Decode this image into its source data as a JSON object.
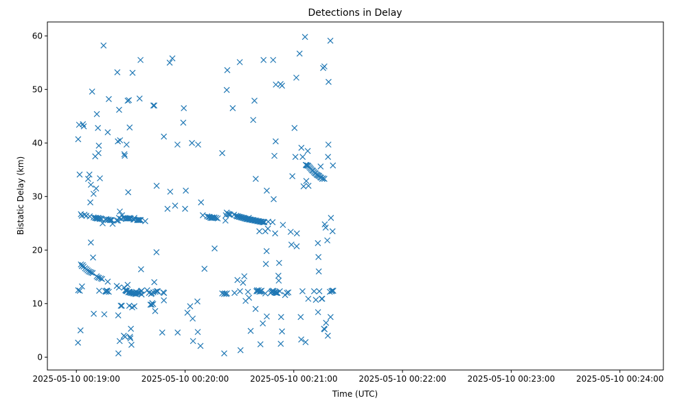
{
  "chart_data": {
    "type": "scatter",
    "title": "Detections in Delay",
    "xlabel": "Time (UTC)",
    "ylabel": "Bistatic Delay (km)",
    "x_start": "2025-05-10 00:19:00",
    "xlim": [
      "2025-05-10 00:18:44",
      "2025-05-10 00:24:24"
    ],
    "ylim": [
      -2.4,
      62.6
    ],
    "x_ticks": [
      "2025-05-10 00:19:00",
      "2025-05-10 00:20:00",
      "2025-05-10 00:21:00",
      "2025-05-10 00:22:00",
      "2025-05-10 00:23:00",
      "2025-05-10 00:24:00"
    ],
    "y_ticks": [
      0,
      10,
      20,
      30,
      40,
      50,
      60
    ],
    "marker": "x",
    "color": "#1f77b4",
    "grid": false,
    "points": [
      [
        1.0,
        40.7
      ],
      [
        1.5,
        43.4
      ],
      [
        1.8,
        34.1
      ],
      [
        2.5,
        26.7
      ],
      [
        3.0,
        26.4
      ],
      [
        3.6,
        43.5
      ],
      [
        4.1,
        43.1
      ],
      [
        4.5,
        26.6
      ],
      [
        5.5,
        26.4
      ],
      [
        6.5,
        33.3
      ],
      [
        7.2,
        34.1
      ],
      [
        7.4,
        26.3
      ],
      [
        7.7,
        28.9
      ],
      [
        8.0,
        32.2
      ],
      [
        8.7,
        49.6
      ],
      [
        9.5,
        30.5
      ],
      [
        10.4,
        37.5
      ],
      [
        10.9,
        31.5
      ],
      [
        11.3,
        45.4
      ],
      [
        11.9,
        42.8
      ],
      [
        12.2,
        38.1
      ],
      [
        12.4,
        39.5
      ],
      [
        13.0,
        33.4
      ],
      [
        14.5,
        25.0
      ],
      [
        15.0,
        58.2
      ],
      [
        17.3,
        42.0
      ],
      [
        17.9,
        48.2
      ],
      [
        19.5,
        25.6
      ],
      [
        20.0,
        24.9
      ],
      [
        22.3,
        25.5
      ],
      [
        22.6,
        53.2
      ],
      [
        22.9,
        40.3
      ],
      [
        23.6,
        46.2
      ],
      [
        24.1,
        40.5
      ],
      [
        24.7,
        25.8
      ],
      [
        25.2,
        26.5
      ],
      [
        26.5,
        37.9
      ],
      [
        26.7,
        37.6
      ],
      [
        27.7,
        39.7
      ],
      [
        28.3,
        47.9
      ],
      [
        28.6,
        30.8
      ],
      [
        29.0,
        48.0
      ],
      [
        29.4,
        42.9
      ],
      [
        31.0,
        53.1
      ],
      [
        32.0,
        26.0
      ],
      [
        34.9,
        48.3
      ],
      [
        35.4,
        55.5
      ],
      [
        38.0,
        25.4
      ],
      [
        42.5,
        47.0
      ],
      [
        43.0,
        47.0
      ],
      [
        44.3,
        32.0
      ],
      [
        48.3,
        41.2
      ],
      [
        50.3,
        27.7
      ],
      [
        51.5,
        55.0
      ],
      [
        51.8,
        30.9
      ],
      [
        53.0,
        55.8
      ],
      [
        54.5,
        28.3
      ],
      [
        55.8,
        39.7
      ],
      [
        59.3,
        46.5
      ],
      [
        59.0,
        43.8
      ],
      [
        60.0,
        27.7
      ],
      [
        60.4,
        31.1
      ],
      [
        63.8,
        40.0
      ],
      [
        67.2,
        39.7
      ],
      [
        68.8,
        28.9
      ],
      [
        69.8,
        26.5
      ],
      [
        74.7,
        26.0
      ],
      [
        76.3,
        20.3
      ],
      [
        80.5,
        38.1
      ],
      [
        82.3,
        25.5
      ],
      [
        83.0,
        49.9
      ],
      [
        83.3,
        53.6
      ],
      [
        85.0,
        26.6
      ],
      [
        86.3,
        46.5
      ],
      [
        90.2,
        55.1
      ],
      [
        95.2,
        26.0
      ],
      [
        97.6,
        44.3
      ],
      [
        98.3,
        47.9
      ],
      [
        99.0,
        33.3
      ],
      [
        101.0,
        23.5
      ],
      [
        103.3,
        55.5
      ],
      [
        104.3,
        23.5
      ],
      [
        105.1,
        31.1
      ],
      [
        105.7,
        24.0
      ],
      [
        105.9,
        25.3
      ],
      [
        108.3,
        25.2
      ],
      [
        108.6,
        55.5
      ],
      [
        108.9,
        29.5
      ],
      [
        109.3,
        37.6
      ],
      [
        109.7,
        23.1
      ],
      [
        110.0,
        40.3
      ],
      [
        110.1,
        50.9
      ],
      [
        111.7,
        14.3
      ],
      [
        112.7,
        51.0
      ],
      [
        113.5,
        50.7
      ],
      [
        114.0,
        24.7
      ],
      [
        119.2,
        33.8
      ],
      [
        120.4,
        42.8
      ],
      [
        120.9,
        37.4
      ],
      [
        121.4,
        52.2
      ],
      [
        121.7,
        23.1
      ],
      [
        123.2,
        56.7
      ],
      [
        124.2,
        39.1
      ],
      [
        124.9,
        37.4
      ],
      [
        125.4,
        31.9
      ],
      [
        126.2,
        59.8
      ],
      [
        126.8,
        35.9
      ],
      [
        126.9,
        32.9
      ],
      [
        127.7,
        38.5
      ],
      [
        128.1,
        32.0
      ],
      [
        134.8,
        35.6
      ],
      [
        135.7,
        33.3
      ],
      [
        136.2,
        54.0
      ],
      [
        136.9,
        54.3
      ],
      [
        137.1,
        24.8
      ],
      [
        137.6,
        24.2
      ],
      [
        138.5,
        21.8
      ],
      [
        138.9,
        37.4
      ],
      [
        139.1,
        39.7
      ],
      [
        139.2,
        51.4
      ],
      [
        140.2,
        59.1
      ],
      [
        140.5,
        26.0
      ],
      [
        141.6,
        35.8
      ],
      [
        141.4,
        23.5
      ],
      [
        140.8,
        12.3
      ],
      [
        141.3,
        12.4
      ],
      [
        141.8,
        12.4
      ],
      [
        2.5,
        17.3
      ],
      [
        3.0,
        17.0
      ],
      [
        3.5,
        17.2
      ],
      [
        4.0,
        16.9
      ],
      [
        4.8,
        16.6
      ],
      [
        5.5,
        16.4
      ],
      [
        6.2,
        16.2
      ],
      [
        6.9,
        16.0
      ],
      [
        7.6,
        15.9
      ],
      [
        8.3,
        15.8
      ],
      [
        9.0,
        15.7
      ],
      [
        11.2,
        15.1
      ],
      [
        11.8,
        14.9
      ],
      [
        12.5,
        14.8
      ],
      [
        13.5,
        14.7
      ],
      [
        14.2,
        14.6
      ],
      [
        8.0,
        21.4
      ],
      [
        9.2,
        18.6
      ],
      [
        9.6,
        8.1
      ],
      [
        12.6,
        12.4
      ],
      [
        15.4,
        8.0
      ],
      [
        16.0,
        12.3
      ],
      [
        16.3,
        12.2
      ],
      [
        16.6,
        12.4
      ],
      [
        16.9,
        12.4
      ],
      [
        17.1,
        12.3
      ],
      [
        17.3,
        14.1
      ],
      [
        17.9,
        12.2
      ],
      [
        22.3,
        13.3
      ],
      [
        23.5,
        13.0
      ],
      [
        25.1,
        9.6
      ],
      [
        26.4,
        13.0
      ],
      [
        27.0,
        12.5
      ],
      [
        27.4,
        12.4
      ],
      [
        27.8,
        12.3
      ],
      [
        28.3,
        13.5
      ],
      [
        28.9,
        12.2
      ],
      [
        29.5,
        12.1
      ],
      [
        30.0,
        12.0
      ],
      [
        30.6,
        12.0
      ],
      [
        31.2,
        11.9
      ],
      [
        31.8,
        11.9
      ],
      [
        32.4,
        11.8
      ],
      [
        33.0,
        11.8
      ],
      [
        33.6,
        11.9
      ],
      [
        34.2,
        12.0
      ],
      [
        34.7,
        12.0
      ],
      [
        35.2,
        12.1
      ],
      [
        35.6,
        12.3
      ],
      [
        36.0,
        12.4
      ],
      [
        26.2,
        4.0
      ],
      [
        26.9,
        3.8
      ],
      [
        29.2,
        9.6
      ],
      [
        29.8,
        3.5
      ],
      [
        29.6,
        3.8
      ],
      [
        30.1,
        5.3
      ],
      [
        30.4,
        2.3
      ],
      [
        30.8,
        9.3
      ],
      [
        32.0,
        9.5
      ],
      [
        33.0,
        12.2
      ],
      [
        40.1,
        12.0
      ],
      [
        40.9,
        9.8
      ],
      [
        41.5,
        9.8
      ],
      [
        41.9,
        10.1
      ],
      [
        42.4,
        9.9
      ],
      [
        41.2,
        11.8
      ],
      [
        41.6,
        11.9
      ],
      [
        42.5,
        12.1
      ],
      [
        43.0,
        14.0
      ],
      [
        43.6,
        12.2
      ],
      [
        44.4,
        12.3
      ],
      [
        44.9,
        12.3
      ],
      [
        43.5,
        8.6
      ],
      [
        44.2,
        19.6
      ],
      [
        47.9,
        12.1
      ],
      [
        48.3,
        10.6
      ],
      [
        48.4,
        12.0
      ],
      [
        47.4,
        4.6
      ],
      [
        55.9,
        4.6
      ],
      [
        61.3,
        8.3
      ],
      [
        62.8,
        9.5
      ],
      [
        64.2,
        7.2
      ],
      [
        66.8,
        10.4
      ],
      [
        64.4,
        3.0
      ],
      [
        67.0,
        4.7
      ],
      [
        68.5,
        2.1
      ],
      [
        70.7,
        16.5
      ],
      [
        73.6,
        26.2
      ],
      [
        75.2,
        26.0
      ],
      [
        76.2,
        26.1
      ],
      [
        77.1,
        26.0
      ],
      [
        78.0,
        25.9
      ],
      [
        80.5,
        11.9
      ],
      [
        81.5,
        11.8
      ],
      [
        82.0,
        11.9
      ],
      [
        82.7,
        11.8
      ],
      [
        83.1,
        11.9
      ],
      [
        81.6,
        0.7
      ],
      [
        87.3,
        12.0
      ],
      [
        88.9,
        14.4
      ],
      [
        90.6,
        1.3
      ],
      [
        90.3,
        12.3
      ],
      [
        92.0,
        13.9
      ],
      [
        92.7,
        15.1
      ],
      [
        93.4,
        10.5
      ],
      [
        94.7,
        12.2
      ],
      [
        95.3,
        11.1
      ],
      [
        96.2,
        4.9
      ],
      [
        98.9,
        9.0
      ],
      [
        99.4,
        12.3
      ],
      [
        99.7,
        12.5
      ],
      [
        100.1,
        12.3
      ],
      [
        100.6,
        12.5
      ],
      [
        101.0,
        12.2
      ],
      [
        101.4,
        12.3
      ],
      [
        101.8,
        12.3
      ],
      [
        102.2,
        12.4
      ],
      [
        101.6,
        2.4
      ],
      [
        102.9,
        6.3
      ],
      [
        104.3,
        11.9
      ],
      [
        105.1,
        7.6
      ],
      [
        104.6,
        17.4
      ],
      [
        105.0,
        19.8
      ],
      [
        107.3,
        12.0
      ],
      [
        107.7,
        12.2
      ],
      [
        108.0,
        12.3
      ],
      [
        108.5,
        12.4
      ],
      [
        108.9,
        12.3
      ],
      [
        109.3,
        12.1
      ],
      [
        109.8,
        12.1
      ],
      [
        110.3,
        12.0
      ],
      [
        110.7,
        12.0
      ],
      [
        111.0,
        12.0
      ],
      [
        111.5,
        15.2
      ],
      [
        111.9,
        17.6
      ],
      [
        112.3,
        12.3
      ],
      [
        113.0,
        7.5
      ],
      [
        113.5,
        4.8
      ],
      [
        115.2,
        11.6
      ],
      [
        116.2,
        12.0
      ],
      [
        112.8,
        2.5
      ],
      [
        117.0,
        12.1
      ],
      [
        118.3,
        23.4
      ],
      [
        118.7,
        21.0
      ],
      [
        121.6,
        20.7
      ],
      [
        123.8,
        7.5
      ],
      [
        124.1,
        3.3
      ],
      [
        124.8,
        12.3
      ],
      [
        126.5,
        2.8
      ],
      [
        131.2,
        12.3
      ],
      [
        132.2,
        10.7
      ],
      [
        133.3,
        21.3
      ],
      [
        133.6,
        18.7
      ],
      [
        133.8,
        16.0
      ],
      [
        133.4,
        8.4
      ],
      [
        135.4,
        10.9
      ],
      [
        135.7,
        10.9
      ],
      [
        136.7,
        5.3
      ],
      [
        137.0,
        5.2
      ],
      [
        137.8,
        6.4
      ],
      [
        138.8,
        4.0
      ],
      [
        139.9,
        12.2
      ],
      [
        140.3,
        7.5
      ],
      [
        134.1,
        12.3
      ],
      [
        128.0,
        10.9
      ],
      [
        1.0,
        12.5
      ],
      [
        1.9,
        12.4
      ],
      [
        2.3,
        5.0
      ],
      [
        3.1,
        13.2
      ],
      [
        0.9,
        2.7
      ],
      [
        23.1,
        7.8
      ],
      [
        23.2,
        0.7
      ],
      [
        23.9,
        3.0
      ],
      [
        24.5,
        9.6
      ],
      [
        27.5,
        12.4
      ],
      [
        28.7,
        12.1
      ],
      [
        29.3,
        12.2
      ],
      [
        35.7,
        16.4
      ],
      [
        36.0,
        11.7
      ],
      [
        39.1,
        12.5
      ],
      [
        9.5,
        26.1
      ],
      [
        10.3,
        26.0
      ],
      [
        10.8,
        26.0
      ],
      [
        11.2,
        25.9
      ],
      [
        11.7,
        25.9
      ],
      [
        12.1,
        26.0
      ],
      [
        12.6,
        25.9
      ],
      [
        13.0,
        25.8
      ],
      [
        13.5,
        25.9
      ],
      [
        14.0,
        25.8
      ],
      [
        16.0,
        25.7
      ],
      [
        16.6,
        25.8
      ],
      [
        17.2,
        25.6
      ],
      [
        17.8,
        25.7
      ],
      [
        18.5,
        25.6
      ],
      [
        19.0,
        25.6
      ],
      [
        23.0,
        25.5
      ],
      [
        23.5,
        26.0
      ],
      [
        24.0,
        27.2
      ],
      [
        26.0,
        26.0
      ],
      [
        27.0,
        26.0
      ],
      [
        27.5,
        25.9
      ],
      [
        28.0,
        25.9
      ],
      [
        28.5,
        25.9
      ],
      [
        29.0,
        25.9
      ],
      [
        29.5,
        25.9
      ],
      [
        30.0,
        25.9
      ],
      [
        31.5,
        25.7
      ],
      [
        32.0,
        25.7
      ],
      [
        33.5,
        25.6
      ],
      [
        34.0,
        25.6
      ],
      [
        34.5,
        25.6
      ],
      [
        35.0,
        25.6
      ],
      [
        35.5,
        25.6
      ],
      [
        72.2,
        26.3
      ],
      [
        73.0,
        26.2
      ],
      [
        74.0,
        26.0
      ],
      [
        75.0,
        26.1
      ],
      [
        76.0,
        26.0
      ],
      [
        82.5,
        26.5
      ],
      [
        83.0,
        27.0
      ],
      [
        83.5,
        26.8
      ],
      [
        84.0,
        26.7
      ],
      [
        84.5,
        26.7
      ],
      [
        87.0,
        26.6
      ],
      [
        88.2,
        26.4
      ],
      [
        88.7,
        26.3
      ],
      [
        89.3,
        26.3
      ],
      [
        89.8,
        26.2
      ],
      [
        90.3,
        26.2
      ],
      [
        90.8,
        26.1
      ],
      [
        91.3,
        26.1
      ],
      [
        91.8,
        26.0
      ],
      [
        92.3,
        26.0
      ],
      [
        92.8,
        25.9
      ],
      [
        93.3,
        25.9
      ],
      [
        93.8,
        25.8
      ],
      [
        94.3,
        25.8
      ],
      [
        94.8,
        25.8
      ],
      [
        95.3,
        25.7
      ],
      [
        95.8,
        25.7
      ],
      [
        96.3,
        25.7
      ],
      [
        96.8,
        25.6
      ],
      [
        97.3,
        25.6
      ],
      [
        97.8,
        25.6
      ],
      [
        98.3,
        25.5
      ],
      [
        98.8,
        25.5
      ],
      [
        99.3,
        25.5
      ],
      [
        99.8,
        25.4
      ],
      [
        100.3,
        25.4
      ],
      [
        100.8,
        25.4
      ],
      [
        101.3,
        25.3
      ],
      [
        101.8,
        25.3
      ],
      [
        102.3,
        25.3
      ],
      [
        102.8,
        25.2
      ],
      [
        103.3,
        25.2
      ],
      [
        103.8,
        25.2
      ],
      [
        126.6,
        35.9
      ],
      [
        127.1,
        35.8
      ],
      [
        127.6,
        35.8
      ],
      [
        128.1,
        35.7
      ],
      [
        128.6,
        35.5
      ],
      [
        129.1,
        35.3
      ],
      [
        129.6,
        35.1
      ],
      [
        130.1,
        34.9
      ],
      [
        130.6,
        34.8
      ],
      [
        131.1,
        34.6
      ],
      [
        131.6,
        34.4
      ],
      [
        132.1,
        34.3
      ],
      [
        132.6,
        34.1
      ],
      [
        133.1,
        34.0
      ],
      [
        133.6,
        33.9
      ],
      [
        134.1,
        33.8
      ],
      [
        134.6,
        33.6
      ],
      [
        135.1,
        33.5
      ],
      [
        136.2,
        33.4
      ],
      [
        136.9,
        33.3
      ]
    ]
  }
}
